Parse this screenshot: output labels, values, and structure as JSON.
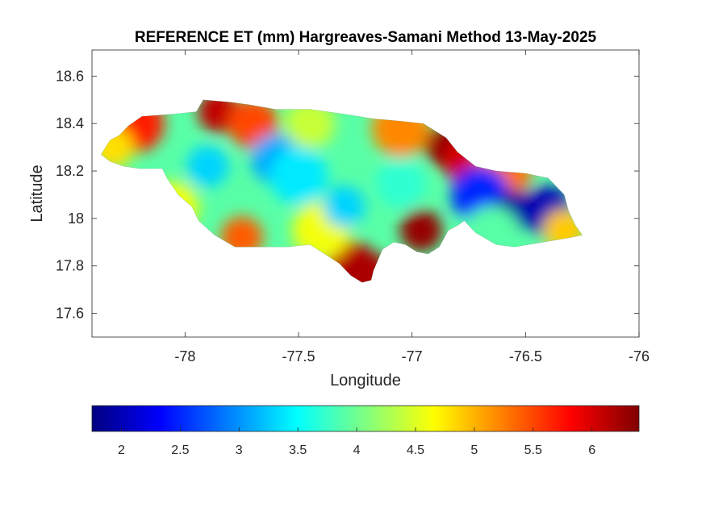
{
  "chart_data": {
    "type": "heatmap",
    "title": "REFERENCE ET (mm) Hargreaves-Samani Method  13-May-2025",
    "xlabel": "Longitude",
    "ylabel": "Latitude",
    "xlim": [
      -78.41,
      -76.0
    ],
    "ylim": [
      17.5,
      18.71
    ],
    "x_ticks": [
      -78,
      -77.5,
      -77,
      -76.5,
      -76
    ],
    "x_tick_labels": [
      "-78",
      "-77.5",
      "-77",
      "-76.5",
      "-76"
    ],
    "y_ticks": [
      17.6,
      17.8,
      18.0,
      18.2,
      18.4,
      18.6
    ],
    "y_tick_labels": [
      "17.6",
      "17.8",
      "18",
      "18.2",
      "18.4",
      "18.6"
    ],
    "colorbar": {
      "colormap": "jet",
      "range": [
        1.75,
        6.4
      ],
      "ticks": [
        2,
        2.5,
        3,
        3.5,
        4,
        4.5,
        5,
        5.5,
        6
      ],
      "tick_labels": [
        "2",
        "2.5",
        "3",
        "3.5",
        "4",
        "4.5",
        "5",
        "5.5",
        "6"
      ],
      "location": "bottom"
    },
    "grid": false,
    "region_outline": [
      [
        -78.37,
        18.27
      ],
      [
        -78.33,
        18.33
      ],
      [
        -78.29,
        18.35
      ],
      [
        -78.25,
        18.39
      ],
      [
        -78.19,
        18.43
      ],
      [
        -78.05,
        18.44
      ],
      [
        -77.95,
        18.45
      ],
      [
        -77.92,
        18.5
      ],
      [
        -77.8,
        18.49
      ],
      [
        -77.72,
        18.48
      ],
      [
        -77.6,
        18.46
      ],
      [
        -77.45,
        18.46
      ],
      [
        -77.3,
        18.44
      ],
      [
        -77.17,
        18.42
      ],
      [
        -77.05,
        18.41
      ],
      [
        -76.95,
        18.4
      ],
      [
        -76.85,
        18.34
      ],
      [
        -76.8,
        18.28
      ],
      [
        -76.72,
        18.22
      ],
      [
        -76.63,
        18.2
      ],
      [
        -76.5,
        18.19
      ],
      [
        -76.4,
        18.17
      ],
      [
        -76.33,
        18.1
      ],
      [
        -76.31,
        18.03
      ],
      [
        -76.28,
        17.97
      ],
      [
        -76.25,
        17.93
      ],
      [
        -76.3,
        17.92
      ],
      [
        -76.42,
        17.9
      ],
      [
        -76.55,
        17.88
      ],
      [
        -76.63,
        17.89
      ],
      [
        -76.72,
        17.94
      ],
      [
        -76.77,
        17.99
      ],
      [
        -76.8,
        17.97
      ],
      [
        -76.84,
        17.95
      ],
      [
        -76.88,
        17.88
      ],
      [
        -76.93,
        17.85
      ],
      [
        -76.98,
        17.86
      ],
      [
        -77.03,
        17.89
      ],
      [
        -77.08,
        17.9
      ],
      [
        -77.13,
        17.87
      ],
      [
        -77.17,
        17.78
      ],
      [
        -77.18,
        17.74
      ],
      [
        -77.22,
        17.73
      ],
      [
        -77.27,
        17.76
      ],
      [
        -77.32,
        17.81
      ],
      [
        -77.4,
        17.86
      ],
      [
        -77.45,
        17.89
      ],
      [
        -77.55,
        17.88
      ],
      [
        -77.72,
        17.88
      ],
      [
        -77.78,
        17.88
      ],
      [
        -77.87,
        17.93
      ],
      [
        -77.94,
        17.99
      ],
      [
        -77.97,
        18.05
      ],
      [
        -78.03,
        18.1
      ],
      [
        -78.08,
        18.17
      ],
      [
        -78.1,
        18.21
      ],
      [
        -78.2,
        18.21
      ],
      [
        -78.27,
        18.22
      ],
      [
        -78.33,
        18.24
      ]
    ],
    "field_anomalies": [
      {
        "lon": -77.85,
        "lat": 18.45,
        "value": 6.1
      },
      {
        "lon": -77.7,
        "lat": 18.4,
        "value": 5.5
      },
      {
        "lon": -78.22,
        "lat": 18.4,
        "value": 5.7
      },
      {
        "lon": -78.32,
        "lat": 18.3,
        "value": 4.8
      },
      {
        "lon": -77.45,
        "lat": 18.4,
        "value": 4.4
      },
      {
        "lon": -77.05,
        "lat": 18.38,
        "value": 5.2
      },
      {
        "lon": -76.85,
        "lat": 18.3,
        "value": 6.3
      },
      {
        "lon": -76.75,
        "lat": 18.24,
        "value": 6.0
      },
      {
        "lon": -76.6,
        "lat": 18.2,
        "value": 5.3
      },
      {
        "lon": -76.96,
        "lat": 17.95,
        "value": 6.3
      },
      {
        "lon": -77.27,
        "lat": 17.8,
        "value": 6.0
      },
      {
        "lon": -77.22,
        "lat": 17.75,
        "value": 6.2
      },
      {
        "lon": -77.75,
        "lat": 17.92,
        "value": 5.4
      },
      {
        "lon": -78.05,
        "lat": 18.05,
        "value": 4.6
      },
      {
        "lon": -77.4,
        "lat": 17.95,
        "value": 4.6
      },
      {
        "lon": -77.9,
        "lat": 18.22,
        "value": 3.3
      },
      {
        "lon": -77.6,
        "lat": 18.25,
        "value": 3.1
      },
      {
        "lon": -77.5,
        "lat": 18.18,
        "value": 3.4
      },
      {
        "lon": -77.3,
        "lat": 18.05,
        "value": 3.3
      },
      {
        "lon": -77.05,
        "lat": 18.15,
        "value": 3.7
      },
      {
        "lon": -76.7,
        "lat": 18.1,
        "value": 2.5
      },
      {
        "lon": -76.55,
        "lat": 18.03,
        "value": 1.9
      },
      {
        "lon": -76.4,
        "lat": 18.03,
        "value": 2.0
      },
      {
        "lon": -76.65,
        "lat": 17.93,
        "value": 3.9
      },
      {
        "lon": -76.33,
        "lat": 17.95,
        "value": 4.9
      }
    ],
    "background_value": 3.9
  }
}
